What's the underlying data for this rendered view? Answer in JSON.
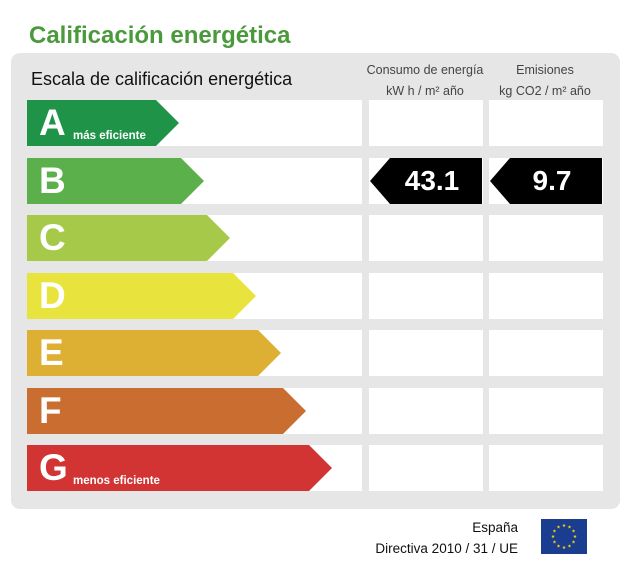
{
  "title": "Calificación energética",
  "scale_label": "Escala de calificación energética",
  "columns": {
    "consumo": {
      "line1": "Consumo de energía",
      "line2": "kW h / m² año"
    },
    "emisiones": {
      "line1": "Emisiones",
      "line2": "kg CO2 / m² año"
    }
  },
  "ratings": [
    {
      "letter": "A",
      "sublabel": "más eficiente",
      "color": "#1f9448"
    },
    {
      "letter": "B",
      "sublabel": "",
      "color": "#5cb04c"
    },
    {
      "letter": "C",
      "sublabel": "",
      "color": "#a6c94a"
    },
    {
      "letter": "D",
      "sublabel": "",
      "color": "#e9e33e"
    },
    {
      "letter": "E",
      "sublabel": "",
      "color": "#ddb034"
    },
    {
      "letter": "F",
      "sublabel": "",
      "color": "#c96d30"
    },
    {
      "letter": "G",
      "sublabel": "menos eficiente",
      "color": "#d23333"
    }
  ],
  "current": {
    "rating": "B",
    "consumo": "43.1",
    "emisiones": "9.7",
    "badge_color": "#000000"
  },
  "footer": {
    "country": "España",
    "directive": "Directiva 2010 / 31 / UE",
    "flag_icon": "eu-flag-icon",
    "flag_color": "#1a3d8f",
    "star_color": "#f5d20a"
  }
}
